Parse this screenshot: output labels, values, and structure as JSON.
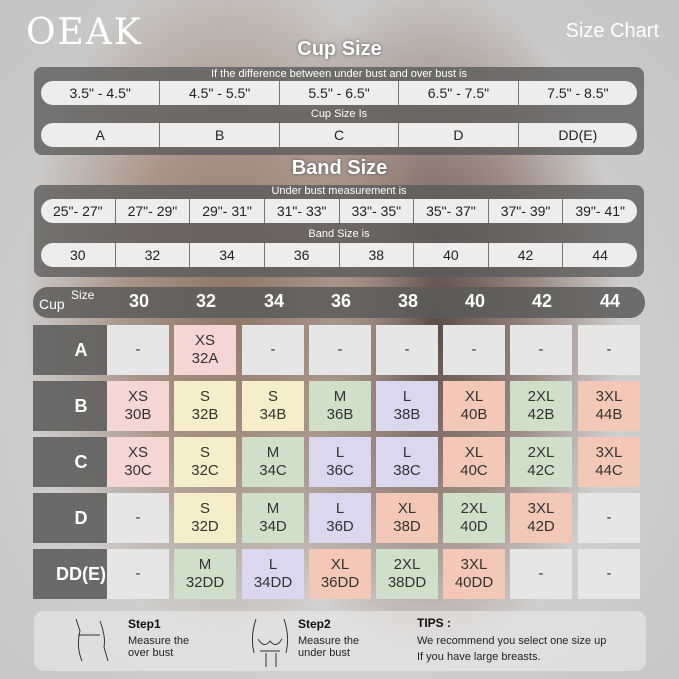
{
  "brand": "OEAK",
  "title": "Size Chart",
  "cup_section": {
    "heading": "Cup Size",
    "difference_label": "If the  difference between under bust and over bust is",
    "differences": [
      "3.5\" -  4.5\"",
      "4.5\" -  5.5\"",
      "5.5\" -  6.5\"",
      "6.5\" -  7.5\"",
      "7.5\" -  8.5\""
    ],
    "cup_label": "Cup Size Is",
    "cups": [
      "A",
      "B",
      "C",
      "D",
      "DD(E)"
    ]
  },
  "band_section": {
    "heading": "Band Size",
    "measure_label": "Under bust measurement is",
    "measures": [
      "25\"- 27\"",
      "27\"- 29\"",
      "29\"- 31\"",
      "31\"- 33\"",
      "33\"- 35\"",
      "35\"- 37\"",
      "37\"- 39\"",
      "39\"- 41\""
    ],
    "band_label": "Band Size is",
    "bands": [
      "30",
      "32",
      "34",
      "36",
      "38",
      "40",
      "42",
      "44"
    ]
  },
  "grid": {
    "corner_size": "Size",
    "corner_cup": "Cup",
    "columns": [
      "30",
      "32",
      "34",
      "36",
      "38",
      "40",
      "42",
      "44"
    ],
    "colors": {
      "pink": "#f6d6d4",
      "yellow": "#f4efc9",
      "green": "#d0dfc9",
      "lavender": "#dad7ee",
      "salmon": "#f3c8b6",
      "grey": "#e6e6e6"
    },
    "rows": [
      {
        "cup": "A",
        "cells": [
          [
            "-",
            "",
            "grey"
          ],
          [
            "XS",
            "32A",
            "pink"
          ],
          [
            "-",
            "",
            "grey"
          ],
          [
            "-",
            "",
            "grey"
          ],
          [
            "-",
            "",
            "grey"
          ],
          [
            "-",
            "",
            "grey"
          ],
          [
            "-",
            "",
            "grey"
          ],
          [
            "-",
            "",
            "grey"
          ]
        ]
      },
      {
        "cup": "B",
        "cells": [
          [
            "XS",
            "30B",
            "pink"
          ],
          [
            "S",
            "32B",
            "yellow"
          ],
          [
            "S",
            "34B",
            "yellow"
          ],
          [
            "M",
            "36B",
            "green"
          ],
          [
            "L",
            "38B",
            "lavender"
          ],
          [
            "XL",
            "40B",
            "salmon"
          ],
          [
            "2XL",
            "42B",
            "green"
          ],
          [
            "3XL",
            "44B",
            "salmon"
          ]
        ]
      },
      {
        "cup": "C",
        "cells": [
          [
            "XS",
            "30C",
            "pink"
          ],
          [
            "S",
            "32C",
            "yellow"
          ],
          [
            "M",
            "34C",
            "green"
          ],
          [
            "L",
            "36C",
            "lavender"
          ],
          [
            "L",
            "38C",
            "lavender"
          ],
          [
            "XL",
            "40C",
            "salmon"
          ],
          [
            "2XL",
            "42C",
            "green"
          ],
          [
            "3XL",
            "44C",
            "salmon"
          ]
        ]
      },
      {
        "cup": "D",
        "cells": [
          [
            "-",
            "",
            "grey"
          ],
          [
            "S",
            "32D",
            "yellow"
          ],
          [
            "M",
            "34D",
            "green"
          ],
          [
            "L",
            "36D",
            "lavender"
          ],
          [
            "XL",
            "38D",
            "salmon"
          ],
          [
            "2XL",
            "40D",
            "green"
          ],
          [
            "3XL",
            "42D",
            "salmon"
          ],
          [
            "-",
            "",
            "grey"
          ]
        ]
      },
      {
        "cup": "DD(E)",
        "cells": [
          [
            "-",
            "",
            "grey"
          ],
          [
            "M",
            "32DD",
            "green"
          ],
          [
            "L",
            "34DD",
            "lavender"
          ],
          [
            "XL",
            "36DD",
            "salmon"
          ],
          [
            "2XL",
            "38DD",
            "green"
          ],
          [
            "3XL",
            "40DD",
            "salmon"
          ],
          [
            "-",
            "",
            "grey"
          ],
          [
            "-",
            "",
            "grey"
          ]
        ]
      }
    ]
  },
  "footer": {
    "step1_title": "Step1",
    "step1_text": "Measure the over bust",
    "step2_title": "Step2",
    "step2_text": "Measure the under bust",
    "tips_title": "TIPS :",
    "tips_line1": "We recommend you select one size up",
    "tips_line2": "If you have large breasts."
  }
}
